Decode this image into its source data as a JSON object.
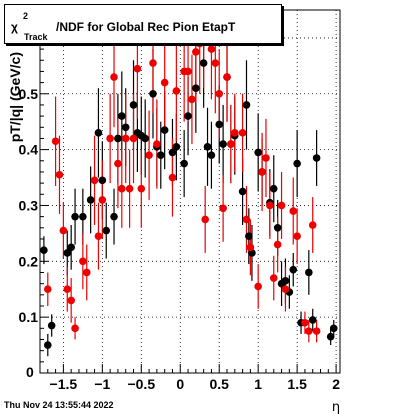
{
  "title": {
    "chi": "χ",
    "sup": "2",
    "sub": "Track",
    "rest": "/NDF for Global Rec Pion EtapT"
  },
  "timestamp": "Thu Nov 24 13:55:44 2022",
  "chart_data": {
    "type": "scatter",
    "xlabel": "η",
    "ylabel": "pT/|q| (GeV/c)",
    "xlim": [
      -1.8,
      2.05
    ],
    "ylim": [
      0,
      0.65
    ],
    "xticks": [
      -1.5,
      -1,
      -0.5,
      0,
      0.5,
      1,
      1.5,
      2
    ],
    "xticklabels": [
      "−1.5",
      "−1",
      "−0.5",
      "0",
      "0.5",
      "1",
      "1.5",
      "2"
    ],
    "yticks": [
      0.1,
      0.2,
      0.3,
      0.4,
      0.5,
      0.6
    ],
    "yticklabels": [
      "0.1",
      "0.2",
      "0.3",
      "0.4",
      "0.5",
      "0.6"
    ],
    "y0label": "0",
    "grid": true,
    "series": [
      {
        "color": "#000000",
        "points": [
          {
            "x": -1.75,
            "y": 0.22,
            "err": 0.025
          },
          {
            "x": -1.7,
            "y": 0.05,
            "err": 0.02
          },
          {
            "x": -1.65,
            "y": 0.085,
            "err": 0.02
          },
          {
            "x": -1.45,
            "y": 0.215,
            "err": 0.04
          },
          {
            "x": -1.4,
            "y": 0.225,
            "err": 0.04
          },
          {
            "x": -1.35,
            "y": 0.28,
            "err": 0.05
          },
          {
            "x": -1.25,
            "y": 0.28,
            "err": 0.05
          },
          {
            "x": -1.15,
            "y": 0.31,
            "err": 0.06
          },
          {
            "x": -1.05,
            "y": 0.43,
            "err": 0.08
          },
          {
            "x": -1.0,
            "y": 0.345,
            "err": 0.07
          },
          {
            "x": -0.95,
            "y": 0.255,
            "err": 0.05
          },
          {
            "x": -0.85,
            "y": 0.28,
            "err": 0.05
          },
          {
            "x": -0.8,
            "y": 0.42,
            "err": 0.08
          },
          {
            "x": -0.75,
            "y": 0.46,
            "err": 0.08
          },
          {
            "x": -0.7,
            "y": 0.44,
            "err": 0.07
          },
          {
            "x": -0.6,
            "y": 0.48,
            "err": 0.08
          },
          {
            "x": -0.55,
            "y": 0.43,
            "err": 0.07
          },
          {
            "x": -0.5,
            "y": 0.425,
            "err": 0.07
          },
          {
            "x": -0.45,
            "y": 0.42,
            "err": 0.07
          },
          {
            "x": -0.35,
            "y": 0.5,
            "err": 0.08
          },
          {
            "x": -0.3,
            "y": 0.405,
            "err": 0.07
          },
          {
            "x": -0.25,
            "y": 0.39,
            "err": 0.06
          },
          {
            "x": -0.2,
            "y": 0.435,
            "err": 0.07
          },
          {
            "x": -0.1,
            "y": 0.395,
            "err": 0.06
          },
          {
            "x": -0.05,
            "y": 0.405,
            "err": 0.06
          },
          {
            "x": 0.05,
            "y": 0.375,
            "err": 0.06
          },
          {
            "x": 0.1,
            "y": 0.46,
            "err": 0.07
          },
          {
            "x": 0.2,
            "y": 0.51,
            "err": 0.08
          },
          {
            "x": 0.3,
            "y": 0.555,
            "err": 0.08
          },
          {
            "x": 0.35,
            "y": 0.405,
            "err": 0.07
          },
          {
            "x": 0.4,
            "y": 0.39,
            "err": 0.06
          },
          {
            "x": 0.5,
            "y": 0.445,
            "err": 0.07
          },
          {
            "x": 0.55,
            "y": 0.41,
            "err": 0.07
          },
          {
            "x": 0.6,
            "y": 0.53,
            "err": 0.08
          },
          {
            "x": 0.65,
            "y": 0.41,
            "err": 0.07
          },
          {
            "x": 0.7,
            "y": 0.425,
            "err": 0.07
          },
          {
            "x": 0.8,
            "y": 0.325,
            "err": 0.06
          },
          {
            "x": 0.85,
            "y": 0.48,
            "err": 0.08
          },
          {
            "x": 0.88,
            "y": 0.245,
            "err": 0.05
          },
          {
            "x": 0.92,
            "y": 0.215,
            "err": 0.05
          },
          {
            "x": 1.0,
            "y": 0.395,
            "err": 0.07
          },
          {
            "x": 1.05,
            "y": 0.36,
            "err": 0.06
          },
          {
            "x": 1.15,
            "y": 0.305,
            "err": 0.06
          },
          {
            "x": 1.2,
            "y": 0.33,
            "err": 0.06
          },
          {
            "x": 1.25,
            "y": 0.26,
            "err": 0.05
          },
          {
            "x": 1.3,
            "y": 0.16,
            "err": 0.04
          },
          {
            "x": 1.35,
            "y": 0.165,
            "err": 0.04
          },
          {
            "x": 1.4,
            "y": 0.145,
            "err": 0.03
          },
          {
            "x": 1.45,
            "y": 0.185,
            "err": 0.03
          },
          {
            "x": 1.5,
            "y": 0.375,
            "err": 0.06
          },
          {
            "x": 1.55,
            "y": 0.09,
            "err": 0.02
          },
          {
            "x": 1.65,
            "y": 0.18,
            "err": 0.04
          },
          {
            "x": 1.7,
            "y": 0.095,
            "err": 0.02
          },
          {
            "x": 1.75,
            "y": 0.385,
            "err": 0.05
          },
          {
            "x": 1.93,
            "y": 0.065,
            "err": 0.015
          },
          {
            "x": 1.97,
            "y": 0.08,
            "err": 0.015
          }
        ]
      },
      {
        "color": "#ee0000",
        "points": [
          {
            "x": -1.7,
            "y": 0.15,
            "err": 0.03
          },
          {
            "x": -1.6,
            "y": 0.415,
            "err": 0.08
          },
          {
            "x": -1.55,
            "y": 0.355,
            "err": 0.07
          },
          {
            "x": -1.5,
            "y": 0.255,
            "err": 0.05
          },
          {
            "x": -1.45,
            "y": 0.15,
            "err": 0.04
          },
          {
            "x": -1.4,
            "y": 0.13,
            "err": 0.04
          },
          {
            "x": -1.35,
            "y": 0.08,
            "err": 0.02
          },
          {
            "x": -1.25,
            "y": 0.2,
            "err": 0.05
          },
          {
            "x": -1.2,
            "y": 0.18,
            "err": 0.05
          },
          {
            "x": -1.1,
            "y": 0.345,
            "err": 0.08
          },
          {
            "x": -1.05,
            "y": 0.245,
            "err": 0.06
          },
          {
            "x": -1.0,
            "y": 0.31,
            "err": 0.07
          },
          {
            "x": -0.9,
            "y": 0.42,
            "err": 0.08
          },
          {
            "x": -0.85,
            "y": 0.53,
            "err": 0.09
          },
          {
            "x": -0.8,
            "y": 0.375,
            "err": 0.08
          },
          {
            "x": -0.75,
            "y": 0.33,
            "err": 0.07
          },
          {
            "x": -0.7,
            "y": 0.42,
            "err": 0.08
          },
          {
            "x": -0.65,
            "y": 0.33,
            "err": 0.07
          },
          {
            "x": -0.6,
            "y": 0.42,
            "err": 0.08
          },
          {
            "x": -0.55,
            "y": 0.545,
            "err": 0.09
          },
          {
            "x": -0.5,
            "y": 0.33,
            "err": 0.07
          },
          {
            "x": -0.4,
            "y": 0.39,
            "err": 0.08
          },
          {
            "x": -0.35,
            "y": 0.555,
            "err": 0.09
          },
          {
            "x": -0.3,
            "y": 0.41,
            "err": 0.08
          },
          {
            "x": -0.2,
            "y": 0.52,
            "err": 0.09
          },
          {
            "x": -0.1,
            "y": 0.35,
            "err": 0.07
          },
          {
            "x": -0.05,
            "y": 0.505,
            "err": 0.09
          },
          {
            "x": 0.05,
            "y": 0.54,
            "err": 0.09
          },
          {
            "x": 0.1,
            "y": 0.54,
            "err": 0.09
          },
          {
            "x": 0.15,
            "y": 0.49,
            "err": 0.08
          },
          {
            "x": 0.2,
            "y": 0.575,
            "err": 0.09
          },
          {
            "x": 0.25,
            "y": 0.59,
            "err": 0.09
          },
          {
            "x": 0.3,
            "y": 0.6,
            "err": 0.09
          },
          {
            "x": 0.32,
            "y": 0.275,
            "err": 0.06
          },
          {
            "x": 0.4,
            "y": 0.58,
            "err": 0.09
          },
          {
            "x": 0.45,
            "y": 0.555,
            "err": 0.09
          },
          {
            "x": 0.5,
            "y": 0.5,
            "err": 0.08
          },
          {
            "x": 0.55,
            "y": 0.295,
            "err": 0.06
          },
          {
            "x": 0.6,
            "y": 0.53,
            "err": 0.08
          },
          {
            "x": 0.65,
            "y": 0.41,
            "err": 0.07
          },
          {
            "x": 0.7,
            "y": 0.43,
            "err": 0.07
          },
          {
            "x": 0.8,
            "y": 0.43,
            "err": 0.07
          },
          {
            "x": 0.85,
            "y": 0.275,
            "err": 0.06
          },
          {
            "x": 0.9,
            "y": 0.225,
            "err": 0.05
          },
          {
            "x": 1.0,
            "y": 0.155,
            "err": 0.04
          },
          {
            "x": 1.05,
            "y": 0.36,
            "err": 0.07
          },
          {
            "x": 1.1,
            "y": 0.385,
            "err": 0.07
          },
          {
            "x": 1.15,
            "y": 0.3,
            "err": 0.06
          },
          {
            "x": 1.2,
            "y": 0.17,
            "err": 0.04
          },
          {
            "x": 1.25,
            "y": 0.23,
            "err": 0.05
          },
          {
            "x": 1.3,
            "y": 0.3,
            "err": 0.06
          },
          {
            "x": 1.35,
            "y": 0.15,
            "err": 0.04
          },
          {
            "x": 1.45,
            "y": 0.29,
            "err": 0.06
          },
          {
            "x": 1.5,
            "y": 0.245,
            "err": 0.05
          },
          {
            "x": 1.6,
            "y": 0.09,
            "err": 0.02
          },
          {
            "x": 1.65,
            "y": 0.075,
            "err": 0.02
          },
          {
            "x": 1.7,
            "y": 0.265,
            "err": 0.05
          },
          {
            "x": 1.75,
            "y": 0.075,
            "err": 0.02
          }
        ]
      }
    ]
  }
}
